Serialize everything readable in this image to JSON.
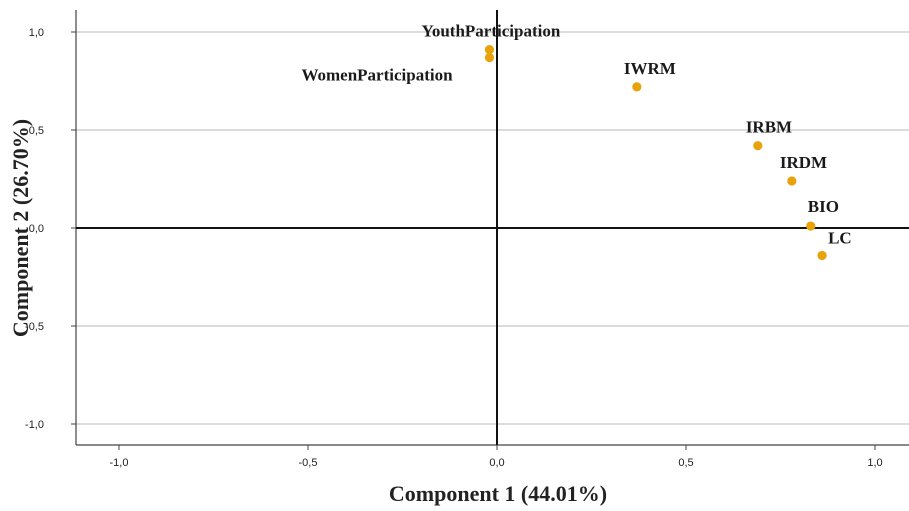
{
  "chart_data": {
    "type": "scatter",
    "xlabel": "Component 1 (44.01%)",
    "ylabel": "Component 2 (26.70%)",
    "xlim": [
      -1.1,
      1.1
    ],
    "ylim": [
      -1.1,
      1.1
    ],
    "x_ticks": [
      -1.0,
      -0.5,
      0.0,
      0.5,
      1.0
    ],
    "x_tick_labels": [
      "-1,0",
      "-0,5",
      "0,0",
      "0,5",
      "1,0"
    ],
    "y_ticks": [
      1.0,
      0.5,
      0.0,
      -0.5,
      -1.0
    ],
    "y_tick_labels": [
      "1,0",
      "0,5",
      "0,0",
      "-0,5",
      "-1,0"
    ],
    "grid": "horizontal",
    "reference_lines": {
      "x": 0,
      "y": 0
    },
    "point_color": "#e8a30c",
    "points": [
      {
        "label": "YouthParticipation",
        "x": -0.02,
        "y": 0.91
      },
      {
        "label": "WomenParticipation",
        "x": -0.02,
        "y": 0.87
      },
      {
        "label": "IWRM",
        "x": 0.37,
        "y": 0.72
      },
      {
        "label": "IRBM",
        "x": 0.69,
        "y": 0.42
      },
      {
        "label": "IRDM",
        "x": 0.78,
        "y": 0.24
      },
      {
        "label": "BIO",
        "x": 0.83,
        "y": 0.01
      },
      {
        "label": "LC",
        "x": 0.86,
        "y": -0.14
      }
    ]
  }
}
